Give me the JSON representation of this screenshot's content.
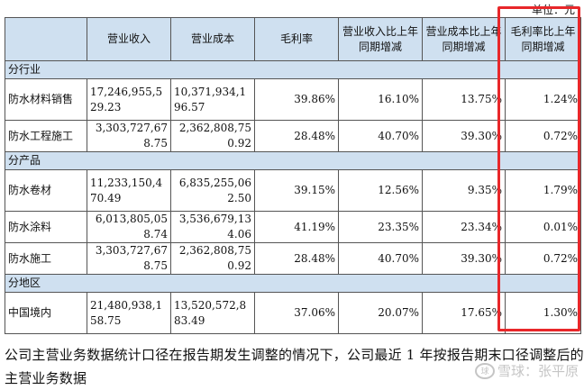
{
  "unit_label": "单位：元",
  "headers": [
    "",
    "营业收入",
    "营业成本",
    "毛利率",
    "营业收入比上年同期增减",
    "营业成本比上年同期增减",
    "毛利率比上年同期增减"
  ],
  "sections": [
    {
      "title": "分行业",
      "rows": [
        {
          "name": "防水材料销售",
          "revenue": "17,246,955,529.23",
          "cost": "10,371,934,196.57",
          "margin": "39.86%",
          "rev_change": "16.10%",
          "cost_change": "13.75%",
          "margin_change": "1.24%"
        },
        {
          "name": "防水工程施工",
          "revenue": "3,303,727,678.75",
          "cost": "2,362,808,750.92",
          "margin": "28.48%",
          "rev_change": "40.70%",
          "cost_change": "39.30%",
          "margin_change": "0.72%"
        }
      ]
    },
    {
      "title": "分产品",
      "rows": [
        {
          "name": "防水卷材",
          "revenue": "11,233,150,470.49",
          "cost": "6,835,255,062.50",
          "margin": "39.15%",
          "rev_change": "12.56%",
          "cost_change": "9.35%",
          "margin_change": "1.79%"
        },
        {
          "name": "防水涂料",
          "revenue": "6,013,805,058.74",
          "cost": "3,536,679,134.06",
          "margin": "41.19%",
          "rev_change": "23.35%",
          "cost_change": "23.34%",
          "margin_change": "0.01%"
        },
        {
          "name": "防水施工",
          "revenue": "3,303,727,678.75",
          "cost": "2,362,808,750.92",
          "margin": "28.48%",
          "rev_change": "40.70%",
          "cost_change": "39.30%",
          "margin_change": "0.72%"
        }
      ]
    },
    {
      "title": "分地区",
      "rows": [
        {
          "name": "中国境内",
          "revenue": "21,480,938,158.75",
          "cost": "13,520,572,883.49",
          "margin": "37.06%",
          "rev_change": "20.07%",
          "cost_change": "17.65%",
          "margin_change": "1.30%"
        }
      ]
    }
  ],
  "footnote": "公司主营业务数据统计口径在报告期发生调整的情况下，公司最近 1 年按报告期末口径调整后的主营业务数据",
  "watermark": "雪球：张平原",
  "watermark_logo": "球",
  "highlight_color": "#e8272a"
}
